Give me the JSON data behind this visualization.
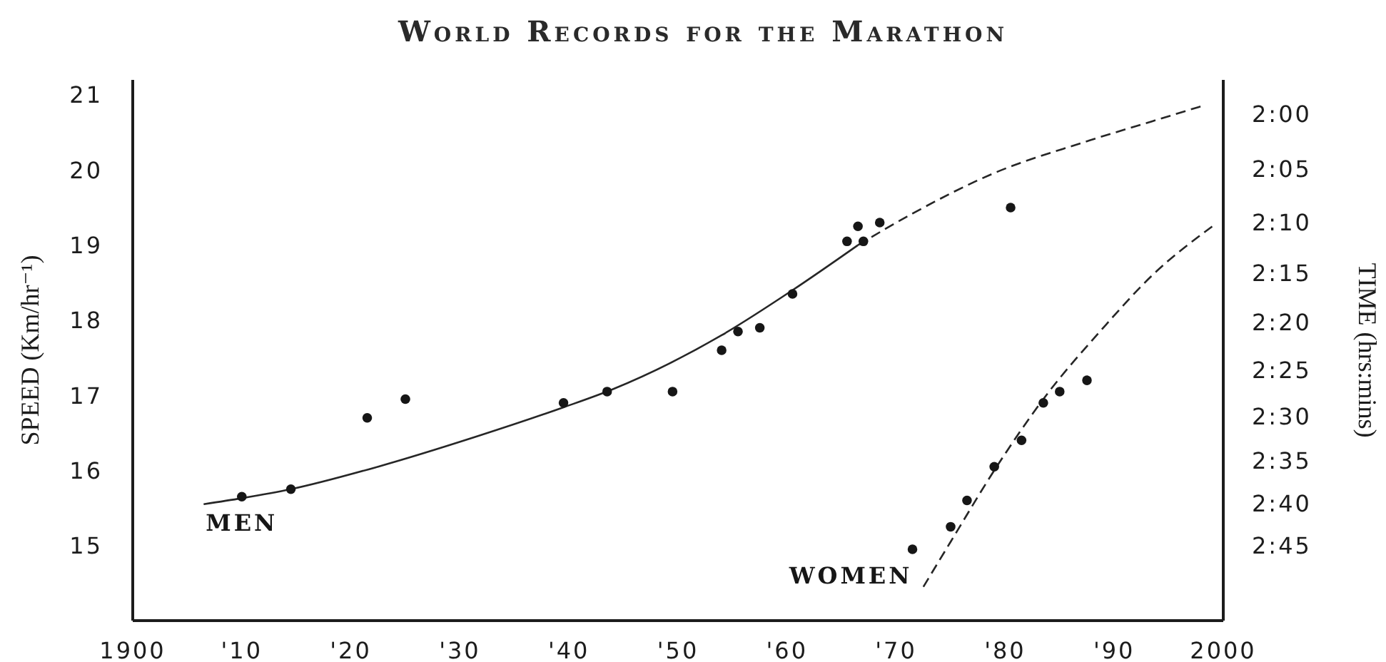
{
  "chart_data": {
    "type": "scatter",
    "title": "World Records for the Marathon",
    "ylabel": "SPEED (Km/hr⁻¹)",
    "y2label": "TIME (hrs:mins)",
    "xlim": [
      1900,
      2000
    ],
    "xticks": [
      1900,
      {
        "value": 1910,
        "label": "'10"
      },
      {
        "value": 1920,
        "label": "'20"
      },
      {
        "value": 1930,
        "label": "'30"
      },
      {
        "value": 1940,
        "label": "'40"
      },
      {
        "value": 1950,
        "label": "'50"
      },
      {
        "value": 1960,
        "label": "'60"
      },
      {
        "value": 1970,
        "label": "'70"
      },
      {
        "value": 1980,
        "label": "'80"
      },
      {
        "value": 1990,
        "label": "'90"
      },
      2000
    ],
    "ylim": [
      14,
      21.2
    ],
    "yticks": [
      15,
      16,
      17,
      18,
      19,
      20,
      21
    ],
    "y2lim": [
      2.907,
      1.951
    ],
    "y2ticks": [
      {
        "value": 2,
        "label": "2:00"
      },
      {
        "value": 2.0833,
        "label": "2:05"
      },
      {
        "value": 2.1667,
        "label": "2:10"
      },
      {
        "value": 2.25,
        "label": "2:15"
      },
      {
        "value": 2.3333,
        "label": "2:20"
      },
      {
        "value": 2.4167,
        "label": "2:25"
      },
      {
        "value": 2.5,
        "label": "2:30"
      },
      {
        "value": 2.5833,
        "label": "2:35"
      },
      {
        "value": 2.6667,
        "label": "2:40"
      },
      {
        "value": 2.75,
        "label": "2:45"
      }
    ],
    "log": "y2",
    "marker": "circle",
    "series": [
      {
        "name": "MEN",
        "color": "#161616",
        "x": [
          1910,
          1914.5,
          1921.5,
          1925,
          1939.5,
          1943.5,
          1949.5,
          1954,
          1955.5,
          1957.5,
          1960.5,
          1965.5,
          1966.5,
          1967,
          1968.5,
          1980.5
        ],
        "values": [
          15.65,
          15.75,
          16.7,
          16.95,
          16.9,
          17.05,
          17.05,
          17.6,
          17.85,
          17.9,
          18.35,
          19.05,
          19.25,
          19.05,
          19.3,
          19.5
        ]
      },
      {
        "type": "line",
        "color": "#262626",
        "marker": "none",
        "line_style": "solid",
        "x": [
          1906.5,
          1910,
          1914.5,
          1922.5,
          1931.5,
          1939.5,
          1944,
          1954,
          1960.5,
          1966.5
        ],
        "values": [
          15.55,
          15.63,
          15.75,
          16.05,
          16.45,
          16.84,
          17.08,
          17.8,
          18.4,
          19.0
        ]
      },
      {
        "type": "line",
        "color": "#262626",
        "marker": "none",
        "line_style": "dashed",
        "x": [
          1966.5,
          1971.5,
          1979,
          1987,
          1993.5,
          1998
        ],
        "values": [
          19.0,
          19.42,
          19.96,
          20.36,
          20.65,
          20.85
        ]
      },
      {
        "name": "WOMEN",
        "color": "#161616",
        "x": [
          1971.5,
          1975,
          1976.5,
          1979,
          1981.5,
          1983.5,
          1985,
          1987.5
        ],
        "values": [
          14.95,
          15.25,
          15.6,
          16.05,
          16.4,
          16.9,
          17.05,
          17.2
        ]
      },
      {
        "type": "line",
        "color": "#262626",
        "marker": "none",
        "line_style": "dashed",
        "x": [
          1972.5,
          1975,
          1979,
          1983.5,
          1989,
          1993.5,
          1999
        ],
        "values": [
          14.45,
          15.05,
          16.0,
          16.95,
          17.9,
          18.6,
          19.25
        ]
      }
    ]
  }
}
